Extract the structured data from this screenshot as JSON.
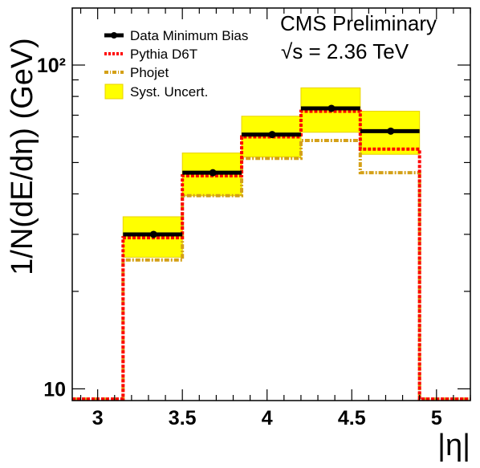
{
  "chart_data": {
    "type": "step-histogram",
    "ylabel": "1/N(dE/dη) (GeV)",
    "xlabel": "|η|",
    "xlim": [
      2.85,
      5.2
    ],
    "ylim": [
      9.2,
      150
    ],
    "yscale": "log",
    "x_ticks": [
      "3",
      "3.5",
      "4",
      "4.5",
      "5"
    ],
    "x_tick_values": [
      3,
      3.5,
      4,
      4.5,
      5
    ],
    "y_ticks": [
      "10",
      "10²"
    ],
    "y_tick_values": [
      10,
      100
    ],
    "annotations": [
      "CMS Preliminary",
      "√s = 2.36 TeV"
    ],
    "legend": {
      "position": "top-left",
      "entries": [
        "Data Minimum Bias",
        "Pythia D6T",
        "Phojet",
        "Syst. Uncert."
      ]
    },
    "bin_edges": [
      3.15,
      3.5,
      3.85,
      4.2,
      4.55,
      4.9
    ],
    "data_points": {
      "x": [
        3.33,
        3.68,
        4.03,
        4.38,
        4.73
      ],
      "y": [
        30,
        46.5,
        61,
        73.5,
        62.5
      ]
    },
    "syst_band": {
      "low": [
        25.5,
        39.5,
        52,
        62,
        53
      ],
      "high": [
        34,
        53.5,
        69.5,
        85,
        72
      ]
    },
    "series": [
      {
        "name": "Pythia D6T",
        "color": "#ff0000",
        "floor": 9.3,
        "values": [
          29.3,
          45.5,
          60,
          72,
          55
        ]
      },
      {
        "name": "Phojet",
        "color": "#d4a017",
        "floor": 9.3,
        "values": [
          25,
          39.5,
          51.5,
          58.5,
          46.5
        ]
      }
    ],
    "colors": {
      "data": "#000000",
      "syst_fill": "#ffff00",
      "syst_stroke": "#e8d200"
    }
  }
}
